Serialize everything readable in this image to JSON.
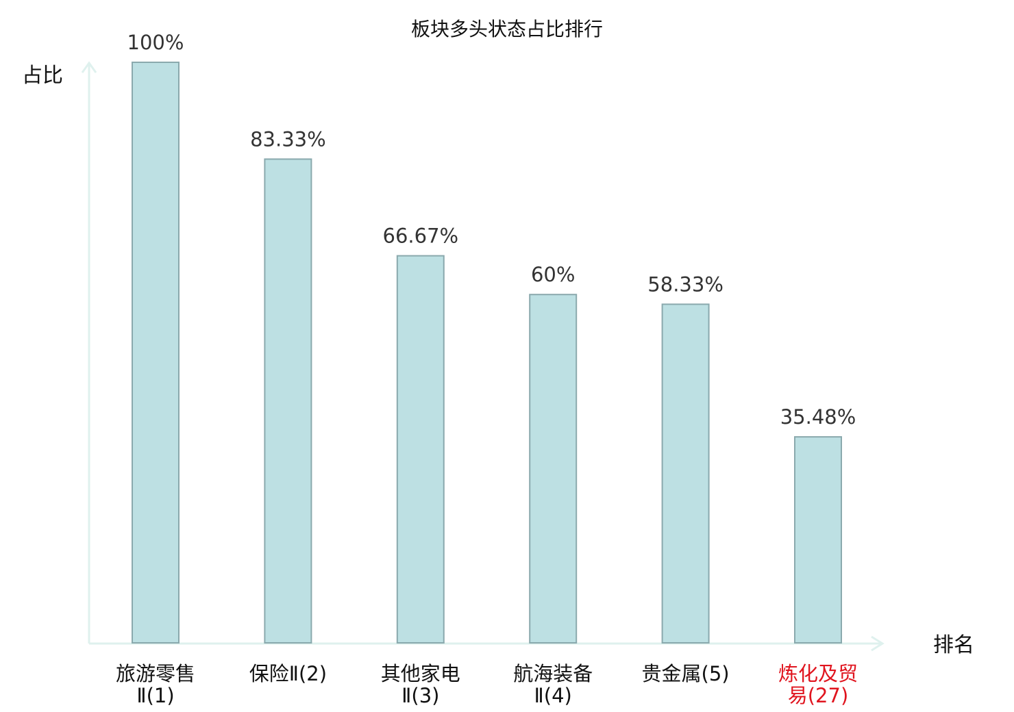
{
  "chart_data": {
    "type": "bar",
    "title": "板块多头状态占比排行",
    "ylabel": "占比",
    "xlabel": "排名",
    "ylim": [
      0,
      100
    ],
    "grid": false,
    "categories": [
      [
        "旅游零售",
        "Ⅱ(1)"
      ],
      [
        "保险Ⅱ(2)"
      ],
      [
        "其他家电",
        "Ⅱ(3)"
      ],
      [
        "航海装备",
        "Ⅱ(4)"
      ],
      [
        "贵金属(5)"
      ],
      [
        "炼化及贸",
        "易(27)"
      ]
    ],
    "values": [
      100,
      83.33,
      66.67,
      60,
      58.33,
      35.48
    ],
    "value_labels": [
      "100%",
      "83.33%",
      "66.67%",
      "60%",
      "58.33%",
      "35.48%"
    ],
    "highlight_index": 5,
    "colors": {
      "bar_fill": "#bde0e3",
      "bar_stroke": "#8aa9ad",
      "axis": "#dff1ee",
      "text": "#111111",
      "value_text": "#333333",
      "highlight": "#e0141e"
    }
  }
}
